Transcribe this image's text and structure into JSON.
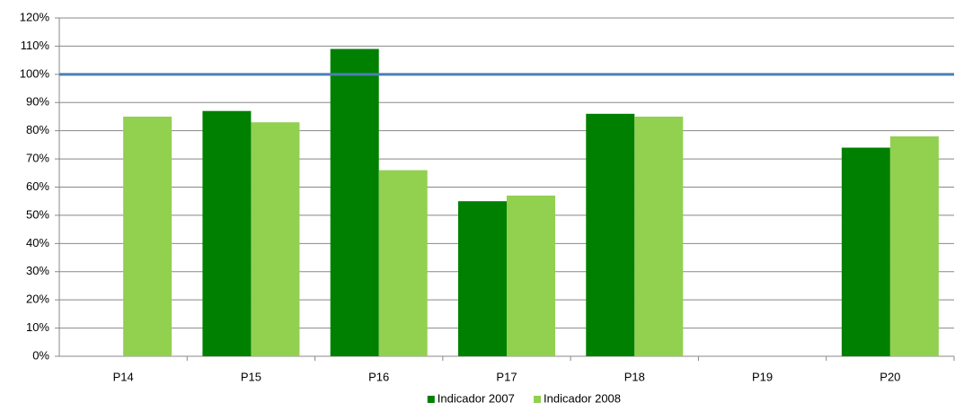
{
  "chart_data": {
    "type": "bar",
    "categories": [
      "P14",
      "P15",
      "P16",
      "P17",
      "P18",
      "P19",
      "P20"
    ],
    "series": [
      {
        "name": "Indicador 2007",
        "color": "#008000",
        "values": [
          null,
          87,
          109,
          55,
          86,
          null,
          74
        ]
      },
      {
        "name": "Indicador 2008",
        "color": "#92d050",
        "values": [
          85,
          83,
          66,
          57,
          85,
          null,
          78
        ]
      }
    ],
    "ylim": [
      0,
      120
    ],
    "yticks": [
      {
        "value": 0,
        "label": "0%"
      },
      {
        "value": 10,
        "label": "10%"
      },
      {
        "value": 20,
        "label": "20%"
      },
      {
        "value": 30,
        "label": "30%"
      },
      {
        "value": 40,
        "label": "40%"
      },
      {
        "value": 50,
        "label": "50%"
      },
      {
        "value": 60,
        "label": "60%"
      },
      {
        "value": 70,
        "label": "70%"
      },
      {
        "value": 80,
        "label": "80%"
      },
      {
        "value": 90,
        "label": "90%"
      },
      {
        "value": 100,
        "label": "100%"
      },
      {
        "value": 110,
        "label": "110%"
      },
      {
        "value": 120,
        "label": "120%"
      }
    ],
    "grid": true,
    "reference_line": {
      "value": 100,
      "color": "#4a7ebb"
    },
    "legend": "bottom"
  }
}
